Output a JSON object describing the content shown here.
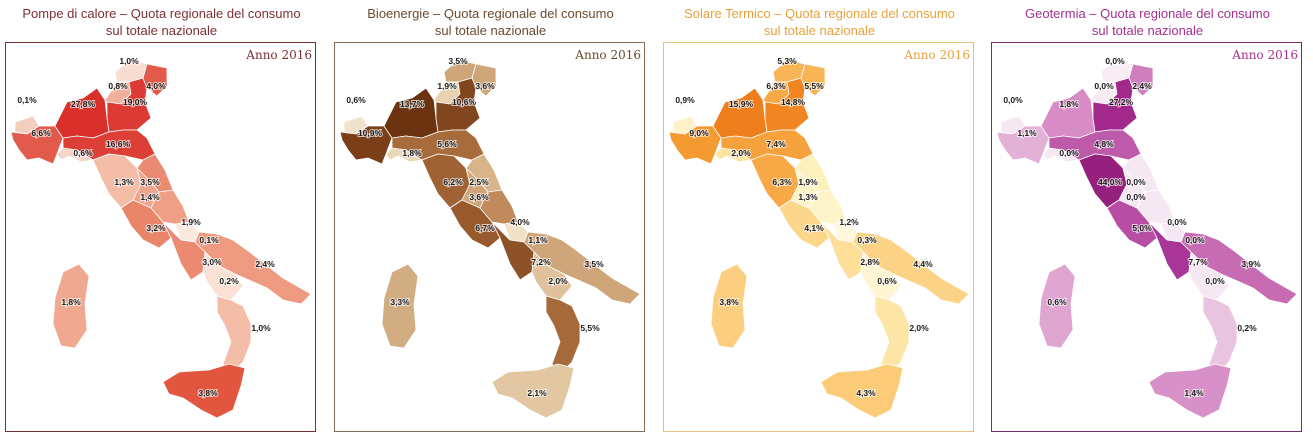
{
  "maps": [
    {
      "title_line1": "Pompe di calore – Quota regionale del consumo",
      "title_line2": "sul totale nazionale",
      "year": "Anno 2016",
      "title_color": "#7b2f33",
      "frame_color": "#7b2f33",
      "values": {
        "valle_daosta": "0,1%",
        "piemonte": "6,6%",
        "lombardia": "27,8%",
        "trentino": "0,8%",
        "alto_adige": "1,0%",
        "veneto": "19,0%",
        "friuli": "4,0%",
        "liguria": "0,6%",
        "emilia": "16,6%",
        "toscana": "1,3%",
        "marche": "3,5%",
        "umbria": "1,4%",
        "lazio": "3,2%",
        "abruzzo": "1,9%",
        "molise": "0,1%",
        "campania": "3,0%",
        "puglia": "2,4%",
        "basilicata": "0,2%",
        "calabria": "1,0%",
        "sicilia": "3,8%",
        "sardegna": "1,8%"
      },
      "colors": {
        "valle_daosta": "#f4cfc0",
        "piemonte": "#e25a4c",
        "lombardia": "#d9302c",
        "trentino": "#f0b09e",
        "alto_adige": "#f7ddd2",
        "veneto": "#db3b33",
        "friuli": "#e15a4a",
        "liguria": "#f6d5c8",
        "emilia": "#dc3f35",
        "toscana": "#f3bda8",
        "marche": "#ea8a72",
        "umbria": "#f0a48e",
        "lazio": "#e98669",
        "abruzzo": "#ee9f86",
        "molise": "#fbe9e0",
        "campania": "#eb8a70",
        "puglia": "#ee9a80",
        "basilicata": "#f9e1d6",
        "calabria": "#f3bda8",
        "sicilia": "#e2553f",
        "sardegna": "#f0a891"
      }
    },
    {
      "title_line1": "Bioenergie – Quota regionale del consumo",
      "title_line2": "sul totale nazionale",
      "year": "Anno 2016",
      "title_color": "#6b4a2e",
      "frame_color": "#8a6a50",
      "values": {
        "valle_daosta": "0,6%",
        "piemonte": "10,9%",
        "lombardia": "13,7%",
        "trentino": "1,9%",
        "alto_adige": "3,5%",
        "veneto": "10,6%",
        "friuli": "3,6%",
        "liguria": "1,8%",
        "emilia": "5,6%",
        "toscana": "6,2%",
        "marche": "2,5%",
        "umbria": "3,6%",
        "lazio": "6,7%",
        "abruzzo": "4,0%",
        "molise": "1,1%",
        "campania": "7,2%",
        "puglia": "3,5%",
        "basilicata": "2,0%",
        "calabria": "5,5%",
        "sicilia": "2,1%",
        "sardegna": "3,3%"
      },
      "colors": {
        "valle_daosta": "#f1e2cc",
        "piemonte": "#7a3f18",
        "lombardia": "#6b3310",
        "trentino": "#e8d2b0",
        "alto_adige": "#cfa57a",
        "veneto": "#82461f",
        "friuli": "#cfa57a",
        "liguria": "#ead7b8",
        "emilia": "#a76b3c",
        "toscana": "#9f6234",
        "marche": "#d8b48a",
        "umbria": "#cfa57a",
        "lazio": "#985a2c",
        "abruzzo": "#c08a5c",
        "molise": "#f0e1c8",
        "campania": "#8e5228",
        "puglia": "#cfa57a",
        "basilicata": "#dfc29c",
        "calabria": "#a5693a",
        "sicilia": "#e2c7a2",
        "sardegna": "#d2ad82"
      }
    },
    {
      "title_line1": "Solare Termico – Quota regionale del consumo",
      "title_line2": "sul totale nazionale",
      "year": "Anno 2016",
      "title_color": "#e8a13b",
      "frame_color": "#e6c07c",
      "values": {
        "valle_daosta": "0,9%",
        "piemonte": "9,0%",
        "lombardia": "15,9%",
        "trentino": "6,3%",
        "alto_adige": "5,3%",
        "veneto": "14,8%",
        "friuli": "5,5%",
        "liguria": "2,0%",
        "emilia": "7,4%",
        "toscana": "6,3%",
        "marche": "1,9%",
        "umbria": "1,3%",
        "lazio": "4,1%",
        "abruzzo": "1,2%",
        "molise": "0,3%",
        "campania": "2,8%",
        "puglia": "4,4%",
        "basilicata": "0,6%",
        "calabria": "2,0%",
        "sicilia": "4,3%",
        "sardegna": "3,8%"
      },
      "colors": {
        "valle_daosta": "#fff2c8",
        "piemonte": "#f39a30",
        "lombardia": "#ef7f1c",
        "trentino": "#f6a945",
        "alto_adige": "#f7b555",
        "veneto": "#f08522",
        "friuli": "#f7b555",
        "liguria": "#fde2a0",
        "emilia": "#f5a13c",
        "toscana": "#f6a945",
        "marche": "#fef0bd",
        "umbria": "#fef3c6",
        "lazio": "#fcd68a",
        "abruzzo": "#fef4ca",
        "molise": "#fff8dc",
        "campania": "#fddf9a",
        "puglia": "#fcd386",
        "basilicata": "#fff5d2",
        "calabria": "#fde5a6",
        "sicilia": "#fbcb78",
        "sardegna": "#fccf80"
      }
    },
    {
      "title_line1": "Geotermia – Quota regionale del consumo",
      "title_line2": "sul totale nazionale",
      "year": "Anno 2016",
      "title_color": "#a3318e",
      "frame_color": "#7a2a6a",
      "values": {
        "valle_daosta": "0,0%",
        "piemonte": "1,1%",
        "lombardia": "1,8%",
        "trentino": "0,0%",
        "alto_adige": "0,0%",
        "veneto": "27,2%",
        "friuli": "2,4%",
        "liguria": "0,0%",
        "emilia": "4,8%",
        "toscana": "44,0%",
        "marche": "0,0%",
        "umbria": "0,0%",
        "lazio": "5,0%",
        "abruzzo": "0,0%",
        "molise": "0,0%",
        "campania": "7,7%",
        "puglia": "3,9%",
        "basilicata": "0,0%",
        "calabria": "0,2%",
        "sicilia": "1,4%",
        "sardegna": "0,6%"
      },
      "colors": {
        "valle_daosta": "#f6e8f3",
        "piemonte": "#e3b1d6",
        "lombardia": "#d88cc6",
        "trentino": "#f7eaf4",
        "alto_adige": "#f8edf5",
        "veneto": "#a3288c",
        "friuli": "#d07fbe",
        "liguria": "#f6e8f3",
        "emilia": "#bd5aa9",
        "toscana": "#96207e",
        "marche": "#f6e8f3",
        "umbria": "#f6e8f3",
        "lazio": "#b84ea3",
        "abruzzo": "#f6e8f3",
        "molise": "#f6e8f3",
        "campania": "#a83597",
        "puglia": "#c76cb3",
        "basilicata": "#f6e8f3",
        "calabria": "#e9c4e0",
        "sicilia": "#d890c8",
        "sardegna": "#dfa6d2"
      }
    }
  ]
}
